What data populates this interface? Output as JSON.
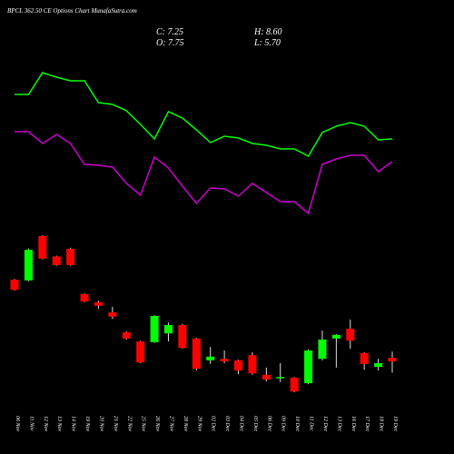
{
  "chart_data": {
    "type": "candlestick",
    "title": "BPCL 362.50 CE Options  Chart MunafaSutra.com",
    "stats": [
      "C: 7.25",
      "H: 8.60",
      "O: 7.75",
      "L: 5.70"
    ],
    "categories": [
      "06 Nov",
      "11 Nov",
      "12 Nov",
      "13 Nov",
      "14 Nov",
      "19 Nov",
      "20 Nov",
      "21 Nov",
      "22 Nov",
      "25 Nov",
      "26 Nov",
      "27 Nov",
      "28 Nov",
      "29 Nov",
      "02 Dec",
      "03 Dec",
      "04 Dec",
      "05 Dec",
      "06 Dec",
      "09 Dec",
      "10 Dec",
      "11 Dec",
      "12 Dec",
      "13 Dec",
      "16 Dec",
      "17 Dec",
      "18 Dec",
      "19 Dec"
    ],
    "open": [
      18.5,
      18.4,
      24.5,
      21.7,
      22.75,
      16.5,
      15.4,
      14,
      11.25,
      10,
      9.9,
      11.1,
      12.25,
      10.4,
      7.4,
      7.6,
      7.4,
      8.1,
      5.4,
      5,
      5,
      4.25,
      7.6,
      10.4,
      11.75,
      8.4,
      6.5,
      7.75
    ],
    "high": [
      18.6,
      22.8,
      24.6,
      21.8,
      22.9,
      16.6,
      15.6,
      14.75,
      11.4,
      10.1,
      13.6,
      12.6,
      12.4,
      10.5,
      9.25,
      8.75,
      7.5,
      8.5,
      6.4,
      7,
      5.1,
      8.9,
      11.5,
      11,
      13,
      8.5,
      7.6,
      8.6
    ],
    "low": [
      17,
      18.3,
      21.3,
      20.4,
      20.4,
      15.4,
      14.5,
      13.1,
      10.25,
      7,
      9.8,
      10,
      9,
      6,
      6.9,
      7,
      5.5,
      5.4,
      4.5,
      4.4,
      3,
      4.1,
      7.4,
      6.4,
      9,
      6.1,
      6,
      5.7
    ],
    "close": [
      17.1,
      22.6,
      21.4,
      20.5,
      20.5,
      15.5,
      14.9,
      13.4,
      10.4,
      7.1,
      13.5,
      12.25,
      9.1,
      6.25,
      7.9,
      7.25,
      6,
      5.6,
      4.75,
      5.1,
      3.1,
      8.75,
      10.25,
      10.9,
      10.1,
      6.9,
      7,
      7.25
    ],
    "ylim": [
      2,
      25.75
    ],
    "up_color": "#00ff00",
    "down_color": "#ff0000",
    "overlay": {
      "type": "line",
      "ylim": [
        0,
        200
      ],
      "series": [
        {
          "color": "#00ff00",
          "values": [
            146,
            146,
            170,
            165,
            161,
            161,
            137,
            135,
            128,
            113,
            97,
            127,
            120,
            107,
            93,
            100,
            98,
            92,
            90,
            86,
            86,
            78,
            104,
            111,
            115,
            111,
            96,
            97
          ]
        },
        {
          "color": "#cc00cc",
          "values": [
            105,
            105,
            92,
            102,
            92,
            69,
            68,
            66,
            48,
            35,
            77,
            65,
            45,
            26,
            43,
            42,
            34,
            48,
            38,
            28,
            28,
            15,
            69,
            75,
            79,
            79,
            61,
            72
          ]
        }
      ]
    }
  }
}
